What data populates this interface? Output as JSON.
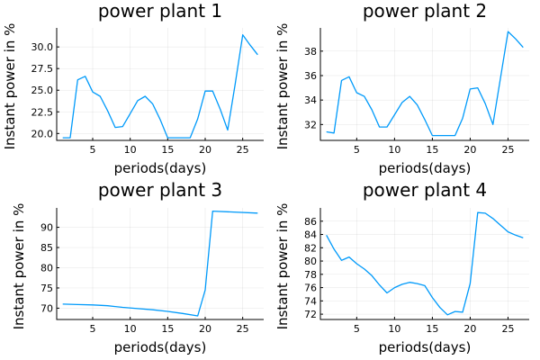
{
  "series_color": "#009AFA",
  "chart_data": [
    {
      "type": "line",
      "title": "power plant 1",
      "xlabel": "periods(days)",
      "ylabel": "Instant power in %",
      "xlim": [
        0.2,
        27.8
      ],
      "ylim": [
        19.2,
        32.2
      ],
      "xticks": [
        5,
        10,
        15,
        20,
        25
      ],
      "yticks": [
        20.0,
        22.5,
        25.0,
        27.5,
        30.0
      ],
      "ytick_labels": [
        "20.0",
        "22.5",
        "25.0",
        "27.5",
        "30.0"
      ],
      "grid": true,
      "legend": false,
      "x": [
        1,
        2,
        3,
        4,
        5,
        6,
        7,
        8,
        9,
        10,
        11,
        12,
        13,
        14,
        15,
        16,
        17,
        18,
        19,
        20,
        21,
        22,
        23,
        24,
        25,
        26,
        27
      ],
      "y": [
        19.5,
        19.5,
        26.2,
        26.6,
        24.8,
        24.3,
        22.6,
        20.7,
        20.8,
        22.3,
        23.8,
        24.3,
        23.4,
        21.6,
        19.5,
        19.5,
        19.5,
        19.5,
        21.7,
        24.9,
        24.9,
        22.8,
        20.4,
        25.7,
        31.4,
        30.2,
        29.1
      ]
    },
    {
      "type": "line",
      "title": "power plant 2",
      "xlabel": "periods(days)",
      "ylabel": "Instant power in %",
      "xlim": [
        0.2,
        27.8
      ],
      "ylim": [
        30.7,
        39.9
      ],
      "xticks": [
        5,
        10,
        15,
        20,
        25
      ],
      "yticks": [
        32,
        34,
        36,
        38
      ],
      "ytick_labels": [
        "32",
        "34",
        "36",
        "38"
      ],
      "grid": true,
      "legend": false,
      "x": [
        1,
        2,
        3,
        4,
        5,
        6,
        7,
        8,
        9,
        10,
        11,
        12,
        13,
        14,
        15,
        16,
        17,
        18,
        19,
        20,
        21,
        22,
        23,
        24,
        25,
        26,
        27
      ],
      "y": [
        31.4,
        31.3,
        35.6,
        35.9,
        34.6,
        34.3,
        33.2,
        31.8,
        31.8,
        32.8,
        33.8,
        34.3,
        33.6,
        32.4,
        31.1,
        31.1,
        31.1,
        31.1,
        32.5,
        34.9,
        35.0,
        33.7,
        32.0,
        35.8,
        39.6,
        39.0,
        38.3
      ]
    },
    {
      "type": "line",
      "title": "power plant 3",
      "xlabel": "periods(days)",
      "ylabel": "Instant power in %",
      "xlim": [
        0.2,
        27.8
      ],
      "ylim": [
        67.2,
        94.8
      ],
      "xticks": [
        5,
        10,
        15,
        20,
        25
      ],
      "yticks": [
        70,
        75,
        80,
        85,
        90
      ],
      "ytick_labels": [
        "70",
        "75",
        "80",
        "85",
        "90"
      ],
      "grid": true,
      "legend": false,
      "x": [
        1,
        3,
        5,
        7,
        9,
        11,
        13,
        15,
        17,
        19,
        20,
        21,
        27
      ],
      "y": [
        71.0,
        70.9,
        70.8,
        70.6,
        70.2,
        69.9,
        69.6,
        69.2,
        68.7,
        68.1,
        74.5,
        94.0,
        93.5
      ]
    },
    {
      "type": "line",
      "title": "power plant 4",
      "xlabel": "periods(days)",
      "ylabel": "Instant power in %",
      "xlim": [
        0.2,
        27.8
      ],
      "ylim": [
        71.2,
        88.0
      ],
      "xticks": [
        5,
        10,
        15,
        20,
        25
      ],
      "yticks": [
        72,
        74,
        76,
        78,
        80,
        82,
        84,
        86
      ],
      "ytick_labels": [
        "72",
        "74",
        "76",
        "78",
        "80",
        "82",
        "84",
        "86"
      ],
      "grid": true,
      "legend": false,
      "x": [
        1,
        2,
        3,
        4,
        5,
        6,
        7,
        8,
        9,
        10,
        11,
        12,
        13,
        14,
        15,
        16,
        17,
        18,
        19,
        20,
        21,
        22,
        23,
        24,
        25,
        26,
        27
      ],
      "y": [
        83.9,
        81.8,
        80.1,
        80.6,
        79.6,
        78.8,
        77.8,
        76.4,
        75.2,
        76.0,
        76.5,
        76.8,
        76.6,
        76.3,
        74.5,
        73.0,
        71.9,
        72.4,
        72.3,
        76.6,
        87.3,
        87.2,
        86.4,
        85.4,
        84.4,
        83.9,
        83.5
      ]
    }
  ]
}
